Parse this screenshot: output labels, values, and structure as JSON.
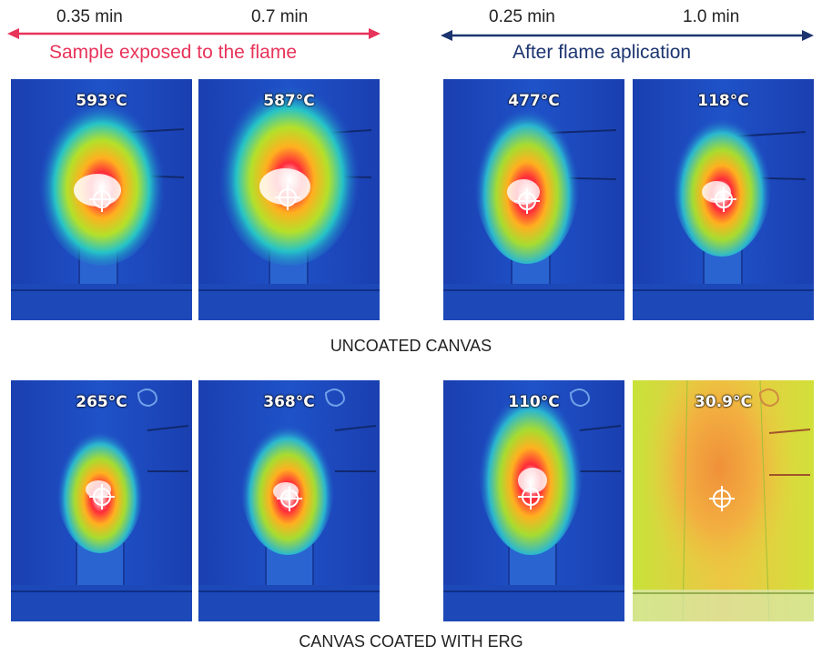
{
  "header": {
    "left_times": [
      "0.35 min",
      "0.7 min"
    ],
    "right_times": [
      "0.25 min",
      "1.0 min"
    ],
    "left_caption": "Sample exposed to the flame",
    "right_caption": "After flame aplication",
    "colors": {
      "left": "#e8335a",
      "right": "#1c3470"
    }
  },
  "rows": [
    {
      "title": "UNCOATED CANVAS",
      "panels": [
        {
          "temperature": "593°C",
          "palette": "blue"
        },
        {
          "temperature": "587°C",
          "palette": "blue"
        },
        {
          "temperature": "477°C",
          "palette": "blue"
        },
        {
          "temperature": "118°C",
          "palette": "blue"
        }
      ]
    },
    {
      "title": "CANVAS COATED WITH ERG",
      "panels": [
        {
          "temperature": "265°C",
          "palette": "blue"
        },
        {
          "temperature": "368°C",
          "palette": "blue"
        },
        {
          "temperature": "110°C",
          "palette": "blue"
        },
        {
          "temperature": "30.9°C",
          "palette": "yellow"
        }
      ]
    }
  ]
}
